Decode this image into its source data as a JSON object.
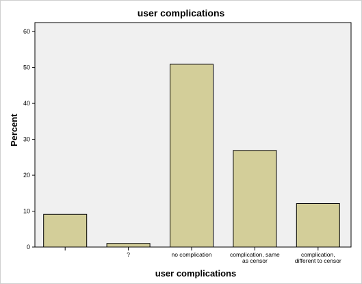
{
  "chart_data": {
    "type": "bar",
    "title": "user complications",
    "xlabel": "user complications",
    "ylabel": "Percent",
    "categories": [
      [
        ""
      ],
      [
        "?"
      ],
      [
        "no complication"
      ],
      [
        "complication, same",
        "as censor"
      ],
      [
        "complication,",
        "different to censor"
      ]
    ],
    "values": [
      9.1,
      1.0,
      50.9,
      26.9,
      12.1
    ],
    "yticks": [
      0,
      10,
      20,
      30,
      40,
      50,
      60
    ],
    "ylim": [
      0,
      62.5
    ],
    "grid": false,
    "legend": "none",
    "colors": {
      "bar_fill": "#D3CE99",
      "plot_background": "#F0F0F0",
      "axis": "#000000"
    }
  }
}
